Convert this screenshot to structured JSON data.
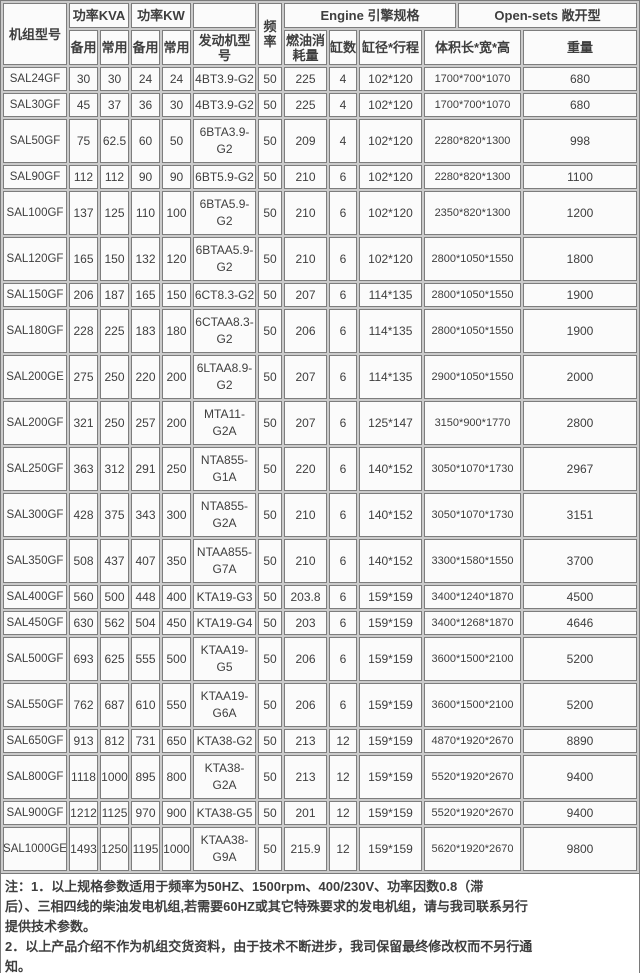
{
  "table": {
    "header": {
      "model": "机组型号",
      "power_kva": "功率KVA",
      "power_kw": "功率KW",
      "standby": "备用",
      "prime": "常用",
      "engine_model": "发动机型号",
      "frequency": "频\n率",
      "engine_group": "Engine 引擎规格",
      "opensets_group": "Open-sets 敞开型",
      "fuel": "燃油消\n耗量",
      "cylinders": "缸数",
      "bore_stroke": "缸径*行程",
      "dimensions": "体积长*宽*高",
      "weight": "重量"
    },
    "rows": [
      {
        "model": "SAL24GF",
        "kva_standby": "30",
        "kva_prime": "30",
        "kw_standby": "24",
        "kw_prime": "24",
        "engine": "4BT3.9-G2",
        "freq": "50",
        "fuel": "225",
        "cyl": "4",
        "bore": "102*120",
        "dims": "1700*700*1070",
        "weight": "680"
      },
      {
        "model": "SAL30GF",
        "kva_standby": "45",
        "kva_prime": "37",
        "kw_standby": "36",
        "kw_prime": "30",
        "engine": "4BT3.9-G2",
        "freq": "50",
        "fuel": "225",
        "cyl": "4",
        "bore": "102*120",
        "dims": "1700*700*1070",
        "weight": "680"
      },
      {
        "model": "SAL50GF",
        "kva_standby": "75",
        "kva_prime": "62.5",
        "kw_standby": "60",
        "kw_prime": "50",
        "engine": "6BTA3.9-\nG2",
        "freq": "50",
        "fuel": "209",
        "cyl": "4",
        "bore": "102*120",
        "dims": "2280*820*1300",
        "weight": "998"
      },
      {
        "model": "SAL90GF",
        "kva_standby": "112",
        "kva_prime": "112",
        "kw_standby": "90",
        "kw_prime": "90",
        "engine": "6BT5.9-G2",
        "freq": "50",
        "fuel": "210",
        "cyl": "6",
        "bore": "102*120",
        "dims": "2280*820*1300",
        "weight": "1100"
      },
      {
        "model": "SAL100GF",
        "kva_standby": "137",
        "kva_prime": "125",
        "kw_standby": "110",
        "kw_prime": "100",
        "engine": "6BTA5.9-\nG2",
        "freq": "50",
        "fuel": "210",
        "cyl": "6",
        "bore": "102*120",
        "dims": "2350*820*1300",
        "weight": "1200"
      },
      {
        "model": "SAL120GF",
        "kva_standby": "165",
        "kva_prime": "150",
        "kw_standby": "132",
        "kw_prime": "120",
        "engine": "6BTAA5.9-\nG2",
        "freq": "50",
        "fuel": "210",
        "cyl": "6",
        "bore": "102*120",
        "dims": "2800*1050*1550",
        "weight": "1800"
      },
      {
        "model": "SAL150GF",
        "kva_standby": "206",
        "kva_prime": "187",
        "kw_standby": "165",
        "kw_prime": "150",
        "engine": "6CT8.3-G2",
        "freq": "50",
        "fuel": "207",
        "cyl": "6",
        "bore": "114*135",
        "dims": "2800*1050*1550",
        "weight": "1900"
      },
      {
        "model": "SAL180GF",
        "kva_standby": "228",
        "kva_prime": "225",
        "kw_standby": "183",
        "kw_prime": "180",
        "engine": "6CTAA8.3-\nG2",
        "freq": "50",
        "fuel": "206",
        "cyl": "6",
        "bore": "114*135",
        "dims": "2800*1050*1550",
        "weight": "1900"
      },
      {
        "model": "SAL200GE",
        "kva_standby": "275",
        "kva_prime": "250",
        "kw_standby": "220",
        "kw_prime": "200",
        "engine": "6LTAA8.9-\nG2",
        "freq": "50",
        "fuel": "207",
        "cyl": "6",
        "bore": "114*135",
        "dims": "2900*1050*1550",
        "weight": "2000"
      },
      {
        "model": "SAL200GF",
        "kva_standby": "321",
        "kva_prime": "250",
        "kw_standby": "257",
        "kw_prime": "200",
        "engine": "MTA11-\nG2A",
        "freq": "50",
        "fuel": "207",
        "cyl": "6",
        "bore": "125*147",
        "dims": "3150*900*1770",
        "weight": "2800"
      },
      {
        "model": "SAL250GF",
        "kva_standby": "363",
        "kva_prime": "312",
        "kw_standby": "291",
        "kw_prime": "250",
        "engine": "NTA855-\nG1A",
        "freq": "50",
        "fuel": "220",
        "cyl": "6",
        "bore": "140*152",
        "dims": "3050*1070*1730",
        "weight": "2967"
      },
      {
        "model": "SAL300GF",
        "kva_standby": "428",
        "kva_prime": "375",
        "kw_standby": "343",
        "kw_prime": "300",
        "engine": "NTA855-\nG2A",
        "freq": "50",
        "fuel": "210",
        "cyl": "6",
        "bore": "140*152",
        "dims": "3050*1070*1730",
        "weight": "3151"
      },
      {
        "model": "SAL350GF",
        "kva_standby": "508",
        "kva_prime": "437",
        "kw_standby": "407",
        "kw_prime": "350",
        "engine": "NTAA855-\nG7A",
        "freq": "50",
        "fuel": "210",
        "cyl": "6",
        "bore": "140*152",
        "dims": "3300*1580*1550",
        "weight": "3700"
      },
      {
        "model": "SAL400GF",
        "kva_standby": "560",
        "kva_prime": "500",
        "kw_standby": "448",
        "kw_prime": "400",
        "engine": "KTA19-G3",
        "freq": "50",
        "fuel": "203.8",
        "cyl": "6",
        "bore": "159*159",
        "dims": "3400*1240*1870",
        "weight": "4500"
      },
      {
        "model": "SAL450GF",
        "kva_standby": "630",
        "kva_prime": "562",
        "kw_standby": "504",
        "kw_prime": "450",
        "engine": "KTA19-G4",
        "freq": "50",
        "fuel": "203",
        "cyl": "6",
        "bore": "159*159",
        "dims": "3400*1268*1870",
        "weight": "4646"
      },
      {
        "model": "SAL500GF",
        "kva_standby": "693",
        "kva_prime": "625",
        "kw_standby": "555",
        "kw_prime": "500",
        "engine": "KTAA19-\nG5",
        "freq": "50",
        "fuel": "206",
        "cyl": "6",
        "bore": "159*159",
        "dims": "3600*1500*2100",
        "weight": "5200"
      },
      {
        "model": "SAL550GF",
        "kva_standby": "762",
        "kva_prime": "687",
        "kw_standby": "610",
        "kw_prime": "550",
        "engine": "KTAA19-\nG6A",
        "freq": "50",
        "fuel": "206",
        "cyl": "6",
        "bore": "159*159",
        "dims": "3600*1500*2100",
        "weight": "5200"
      },
      {
        "model": "SAL650GF",
        "kva_standby": "913",
        "kva_prime": "812",
        "kw_standby": "731",
        "kw_prime": "650",
        "engine": "KTA38-G2",
        "freq": "50",
        "fuel": "213",
        "cyl": "12",
        "bore": "159*159",
        "dims": "4870*1920*2670",
        "weight": "8890"
      },
      {
        "model": "SAL800GF",
        "kva_standby": "1118",
        "kva_prime": "1000",
        "kw_standby": "895",
        "kw_prime": "800",
        "engine": "KTA38-\nG2A",
        "freq": "50",
        "fuel": "213",
        "cyl": "12",
        "bore": "159*159",
        "dims": "5520*1920*2670",
        "weight": "9400"
      },
      {
        "model": "SAL900GF",
        "kva_standby": "1212",
        "kva_prime": "1125",
        "kw_standby": "970",
        "kw_prime": "900",
        "engine": "KTA38-G5",
        "freq": "50",
        "fuel": "201",
        "cyl": "12",
        "bore": "159*159",
        "dims": "5520*1920*2670",
        "weight": "9400"
      },
      {
        "model": "SAL1000GE",
        "kva_standby": "1493",
        "kva_prime": "1250",
        "kw_standby": "1195",
        "kw_prime": "1000",
        "engine": "KTAA38-\nG9A",
        "freq": "50",
        "fuel": "215.9",
        "cyl": "12",
        "bore": "159*159",
        "dims": "5620*1920*2670",
        "weight": "9800"
      }
    ]
  },
  "notes": {
    "lines": [
      "注：1．以上规格参数适用于频率为50HZ、1500rpm、400/230V、功率因数0.8（滞",
      "后）、三相四线的柴油发电机组,若需要60HZ或其它特殊要求的发电机组，请与我司联系另行",
      "提供技术参数。",
      "2．以上产品介绍不作为机组交货资料，由于技术不断进步，我司保留最终修改权而不另行通",
      "知。"
    ]
  },
  "colors": {
    "cell_bg": "#fbfbfb",
    "grid_gap": "#cbcbcb",
    "border": "#7a7a7a",
    "text": "#3e3e3e"
  }
}
